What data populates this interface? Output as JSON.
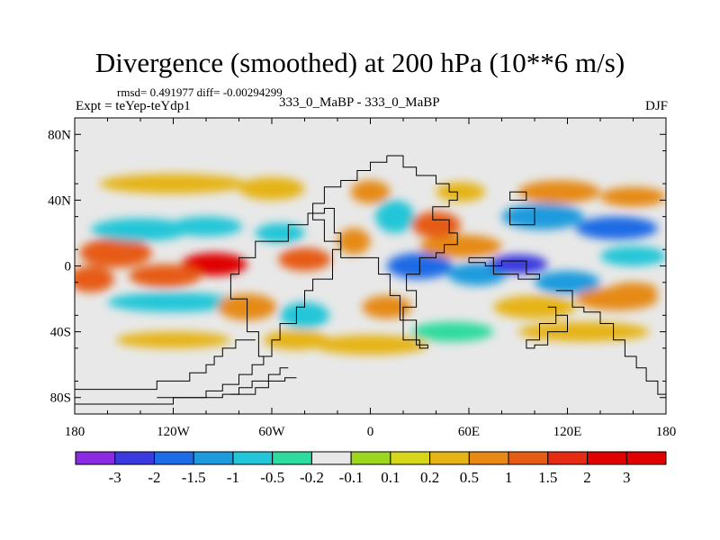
{
  "title": "Divergence (smoothed) at 200 hPa (10**6 m/s)",
  "stats": "rmsd= 0.491977 diff= -0.00294299",
  "experiment": "Expt = teYep-teYdp1",
  "runs": "333_0_MaBP - 333_0_MaBP",
  "season": "DJF",
  "chart_data": {
    "type": "heatmap",
    "title": "Divergence (smoothed) at 200 hPa (10**6 m/s)",
    "xlabel": "",
    "ylabel": "",
    "xlim": [
      -180,
      180
    ],
    "ylim": [
      -90,
      90
    ],
    "x_ticks": [
      {
        "value": -180,
        "label": "180"
      },
      {
        "value": -120,
        "label": "120W"
      },
      {
        "value": -60,
        "label": "60W"
      },
      {
        "value": 0,
        "label": "0"
      },
      {
        "value": 60,
        "label": "60E"
      },
      {
        "value": 120,
        "label": "120E"
      },
      {
        "value": 180,
        "label": "180"
      }
    ],
    "y_ticks": [
      {
        "value": 80,
        "label": "80N"
      },
      {
        "value": 40,
        "label": "40N"
      },
      {
        "value": 0,
        "label": "0"
      },
      {
        "value": -40,
        "label": "40S"
      },
      {
        "value": -80,
        "label": "80S"
      }
    ],
    "colorbar": {
      "levels": [
        "-3",
        "-2",
        "-1.5",
        "-1",
        "-0.5",
        "-0.2",
        "-0.1",
        "0.1",
        "0.2",
        "0.5",
        "1",
        "1.5",
        "2",
        "3"
      ],
      "colors": [
        "#8a2be2",
        "#3a3adf",
        "#1e6be6",
        "#1e9bde",
        "#22c6d8",
        "#2edb9e",
        "#e8e8e8",
        "#9cd61e",
        "#d6d61a",
        "#e6b414",
        "#e68a14",
        "#e65c14",
        "#e62a14",
        "#e00000"
      ]
    },
    "field_blobs": [
      {
        "lon": -155,
        "lat": 8,
        "rlon": 22,
        "rlat": 9,
        "value": 1.2
      },
      {
        "lon": -95,
        "lat": 1,
        "rlon": 20,
        "rlat": 7,
        "value": 2.2
      },
      {
        "lon": -40,
        "lat": 4,
        "rlon": 16,
        "rlat": 7,
        "value": 1.5
      },
      {
        "lon": -170,
        "lat": -8,
        "rlon": 14,
        "rlat": 8,
        "value": 1.3
      },
      {
        "lon": -125,
        "lat": -6,
        "rlon": 22,
        "rlat": 7,
        "value": 1.2
      },
      {
        "lon": -140,
        "lat": 22,
        "rlon": 30,
        "rlat": 7,
        "value": -0.6
      },
      {
        "lon": -100,
        "lat": 24,
        "rlon": 22,
        "rlat": 6,
        "value": -0.8
      },
      {
        "lon": -120,
        "lat": 50,
        "rlon": 45,
        "rlat": 6,
        "value": 0.4
      },
      {
        "lon": -60,
        "lat": 47,
        "rlon": 20,
        "rlat": 7,
        "value": 0.3
      },
      {
        "lon": -55,
        "lat": 20,
        "rlon": 15,
        "rlat": 6,
        "value": -0.5
      },
      {
        "lon": -120,
        "lat": -22,
        "rlon": 40,
        "rlat": 6,
        "value": -0.6
      },
      {
        "lon": -75,
        "lat": -25,
        "rlon": 18,
        "rlat": 8,
        "value": 0.8
      },
      {
        "lon": -40,
        "lat": -30,
        "rlon": 15,
        "rlat": 8,
        "value": -0.6
      },
      {
        "lon": -120,
        "lat": -45,
        "rlon": 35,
        "rlat": 5,
        "value": 0.3
      },
      {
        "lon": -45,
        "lat": -45,
        "rlon": 20,
        "rlat": 6,
        "value": 0.4
      },
      {
        "lon": 0,
        "lat": -48,
        "rlon": 35,
        "rlat": 6,
        "value": 0.3
      },
      {
        "lon": 10,
        "lat": -25,
        "rlon": 15,
        "rlat": 7,
        "value": 1.0
      },
      {
        "lon": -10,
        "lat": 15,
        "rlon": 10,
        "rlat": 8,
        "value": 0.6
      },
      {
        "lon": 0,
        "lat": 45,
        "rlon": 12,
        "rlat": 7,
        "value": 0.9
      },
      {
        "lon": 15,
        "lat": 30,
        "rlon": 12,
        "rlat": 10,
        "value": -0.6
      },
      {
        "lon": 30,
        "lat": 0,
        "rlon": 20,
        "rlat": 8,
        "value": -1.5
      },
      {
        "lon": 55,
        "lat": 12,
        "rlon": 25,
        "rlat": 7,
        "value": 1.0
      },
      {
        "lon": 40,
        "lat": 25,
        "rlon": 15,
        "rlat": 8,
        "value": 1.1
      },
      {
        "lon": 65,
        "lat": -5,
        "rlon": 18,
        "rlat": 7,
        "value": -1.0
      },
      {
        "lon": 90,
        "lat": 1,
        "rlon": 18,
        "rlat": 6,
        "value": -2.2
      },
      {
        "lon": 120,
        "lat": -10,
        "rlon": 20,
        "rlat": 7,
        "value": -1.1
      },
      {
        "lon": 160,
        "lat": 6,
        "rlon": 20,
        "rlat": 6,
        "value": -0.6
      },
      {
        "lon": 105,
        "lat": 30,
        "rlon": 25,
        "rlat": 8,
        "value": -1.0
      },
      {
        "lon": 150,
        "lat": 23,
        "rlon": 25,
        "rlat": 7,
        "value": -1.6
      },
      {
        "lon": 115,
        "lat": 45,
        "rlon": 25,
        "rlat": 7,
        "value": 0.9
      },
      {
        "lon": 160,
        "lat": 42,
        "rlon": 20,
        "rlat": 6,
        "value": 0.7
      },
      {
        "lon": 55,
        "lat": 45,
        "rlon": 15,
        "rlat": 6,
        "value": 0.4
      },
      {
        "lon": 100,
        "lat": -25,
        "rlon": 25,
        "rlat": 7,
        "value": 0.4
      },
      {
        "lon": 150,
        "lat": -20,
        "rlon": 25,
        "rlat": 7,
        "value": 0.6
      },
      {
        "lon": 130,
        "lat": -40,
        "rlon": 40,
        "rlat": 6,
        "value": 0.3
      },
      {
        "lon": 50,
        "lat": -40,
        "rlon": 25,
        "rlat": 6,
        "value": -0.3
      },
      {
        "lon": 160,
        "lat": -15,
        "rlon": 15,
        "rlat": 5,
        "value": 1.0
      }
    ],
    "continent_outlines": [
      [
        [
          10,
          67
        ],
        [
          20,
          67
        ],
        [
          20,
          60
        ],
        [
          28,
          60
        ],
        [
          28,
          55
        ],
        [
          40,
          55
        ],
        [
          40,
          50
        ],
        [
          48,
          50
        ],
        [
          48,
          45
        ],
        [
          53,
          45
        ],
        [
          53,
          40
        ],
        [
          48,
          40
        ],
        [
          48,
          36
        ],
        [
          38,
          36
        ],
        [
          38,
          28
        ],
        [
          48,
          28
        ],
        [
          48,
          20
        ],
        [
          53,
          20
        ],
        [
          53,
          13
        ],
        [
          45,
          13
        ],
        [
          45,
          8
        ],
        [
          40,
          8
        ],
        [
          40,
          5
        ],
        [
          30,
          5
        ],
        [
          30,
          -5
        ],
        [
          22,
          -5
        ],
        [
          22,
          -15
        ],
        [
          28,
          -15
        ],
        [
          28,
          -25
        ],
        [
          20,
          -25
        ],
        [
          20,
          -45
        ],
        [
          30,
          -45
        ],
        [
          30,
          -50
        ],
        [
          35,
          -50
        ],
        [
          35,
          -48
        ],
        [
          28,
          -48
        ],
        [
          28,
          -33
        ],
        [
          18,
          -33
        ],
        [
          18,
          -18
        ],
        [
          12,
          -18
        ],
        [
          12,
          -5
        ],
        [
          5,
          -5
        ],
        [
          5,
          5
        ],
        [
          -18,
          5
        ],
        [
          -18,
          15
        ],
        [
          -28,
          15
        ],
        [
          -28,
          28
        ],
        [
          -35,
          28
        ],
        [
          -35,
          38
        ],
        [
          -28,
          38
        ],
        [
          -28,
          48
        ],
        [
          -18,
          48
        ],
        [
          -18,
          52
        ],
        [
          -8,
          52
        ],
        [
          -8,
          58
        ],
        [
          0,
          58
        ],
        [
          0,
          63
        ],
        [
          10,
          63
        ],
        [
          10,
          67
        ]
      ],
      [
        [
          -18,
          10
        ],
        [
          -23,
          10
        ],
        [
          -23,
          -8
        ],
        [
          -35,
          -8
        ],
        [
          -35,
          -15
        ],
        [
          -40,
          -15
        ],
        [
          -40,
          -25
        ],
        [
          -45,
          -25
        ],
        [
          -45,
          -35
        ],
        [
          -55,
          -35
        ],
        [
          -55,
          -45
        ],
        [
          -60,
          -45
        ],
        [
          -60,
          -55
        ],
        [
          -68,
          -55
        ],
        [
          -68,
          -40
        ],
        [
          -75,
          -40
        ],
        [
          -75,
          -20
        ],
        [
          -85,
          -20
        ],
        [
          -85,
          -5
        ],
        [
          -80,
          -5
        ],
        [
          -80,
          5
        ],
        [
          -70,
          5
        ],
        [
          -70,
          15
        ],
        [
          -50,
          15
        ],
        [
          -50,
          25
        ],
        [
          -38,
          25
        ],
        [
          -38,
          32
        ],
        [
          -28,
          32
        ],
        [
          -28,
          35
        ],
        [
          -22,
          35
        ],
        [
          -22,
          20
        ],
        [
          -18,
          20
        ],
        [
          -18,
          10
        ]
      ],
      [
        [
          60,
          5
        ],
        [
          75,
          5
        ],
        [
          75,
          -5
        ],
        [
          90,
          -5
        ],
        [
          90,
          -8
        ],
        [
          103,
          -8
        ],
        [
          103,
          -5
        ],
        [
          95,
          -5
        ],
        [
          95,
          3
        ],
        [
          80,
          3
        ],
        [
          80,
          0
        ],
        [
          70,
          0
        ],
        [
          70,
          2
        ],
        [
          60,
          2
        ],
        [
          60,
          5
        ]
      ],
      [
        [
          113,
          -15
        ],
        [
          123,
          -15
        ],
        [
          123,
          -25
        ],
        [
          130,
          -25
        ],
        [
          130,
          -28
        ],
        [
          140,
          -28
        ],
        [
          140,
          -35
        ],
        [
          148,
          -35
        ],
        [
          148,
          -45
        ],
        [
          155,
          -45
        ],
        [
          155,
          -55
        ],
        [
          162,
          -55
        ],
        [
          162,
          -62
        ],
        [
          168,
          -62
        ],
        [
          168,
          -70
        ],
        [
          175,
          -70
        ],
        [
          175,
          -78
        ],
        [
          180,
          -78
        ]
      ],
      [
        [
          108,
          -25
        ],
        [
          113,
          -25
        ],
        [
          113,
          -35
        ],
        [
          103,
          -35
        ],
        [
          103,
          -45
        ],
        [
          95,
          -45
        ],
        [
          95,
          -50
        ],
        [
          100,
          -50
        ],
        [
          100,
          -48
        ],
        [
          108,
          -48
        ],
        [
          108,
          -40
        ],
        [
          120,
          -40
        ],
        [
          120,
          -30
        ],
        [
          113,
          -30
        ],
        [
          113,
          -25
        ]
      ],
      [
        [
          85,
          35
        ],
        [
          85,
          25
        ],
        [
          100,
          25
        ],
        [
          100,
          35
        ],
        [
          85,
          35
        ]
      ],
      [
        [
          90,
          45
        ],
        [
          95,
          45
        ],
        [
          95,
          40
        ],
        [
          85,
          40
        ],
        [
          85,
          45
        ],
        [
          90,
          45
        ]
      ],
      [
        [
          -180,
          -75
        ],
        [
          -130,
          -75
        ],
        [
          -130,
          -70
        ],
        [
          -110,
          -70
        ],
        [
          -110,
          -65
        ],
        [
          -100,
          -65
        ],
        [
          -100,
          -60
        ],
        [
          -95,
          -60
        ],
        [
          -95,
          -55
        ],
        [
          -90,
          -55
        ],
        [
          -90,
          -50
        ],
        [
          -82,
          -50
        ],
        [
          -82,
          -45
        ],
        [
          -70,
          -45
        ]
      ],
      [
        [
          -180,
          -84
        ],
        [
          -120,
          -84
        ],
        [
          -120,
          -80
        ],
        [
          -100,
          -80
        ],
        [
          -100,
          -76
        ],
        [
          -90,
          -76
        ],
        [
          -90,
          -72
        ],
        [
          -80,
          -72
        ],
        [
          -80,
          -66
        ],
        [
          -72,
          -66
        ],
        [
          -72,
          -60
        ],
        [
          -65,
          -60
        ],
        [
          -65,
          -55
        ]
      ],
      [
        [
          -130,
          -80
        ],
        [
          -90,
          -80
        ],
        [
          -90,
          -78
        ],
        [
          -80,
          -78
        ],
        [
          -80,
          -74
        ],
        [
          -72,
          -74
        ],
        [
          -72,
          -70
        ],
        [
          -62,
          -70
        ],
        [
          -62,
          -66
        ],
        [
          -55,
          -66
        ],
        [
          -55,
          -62
        ],
        [
          -50,
          -62
        ]
      ],
      [
        [
          -85,
          -78
        ],
        [
          -70,
          -78
        ],
        [
          -70,
          -74
        ],
        [
          -62,
          -74
        ],
        [
          -62,
          -70
        ],
        [
          -52,
          -70
        ],
        [
          -52,
          -68
        ],
        [
          -45,
          -68
        ]
      ]
    ]
  }
}
